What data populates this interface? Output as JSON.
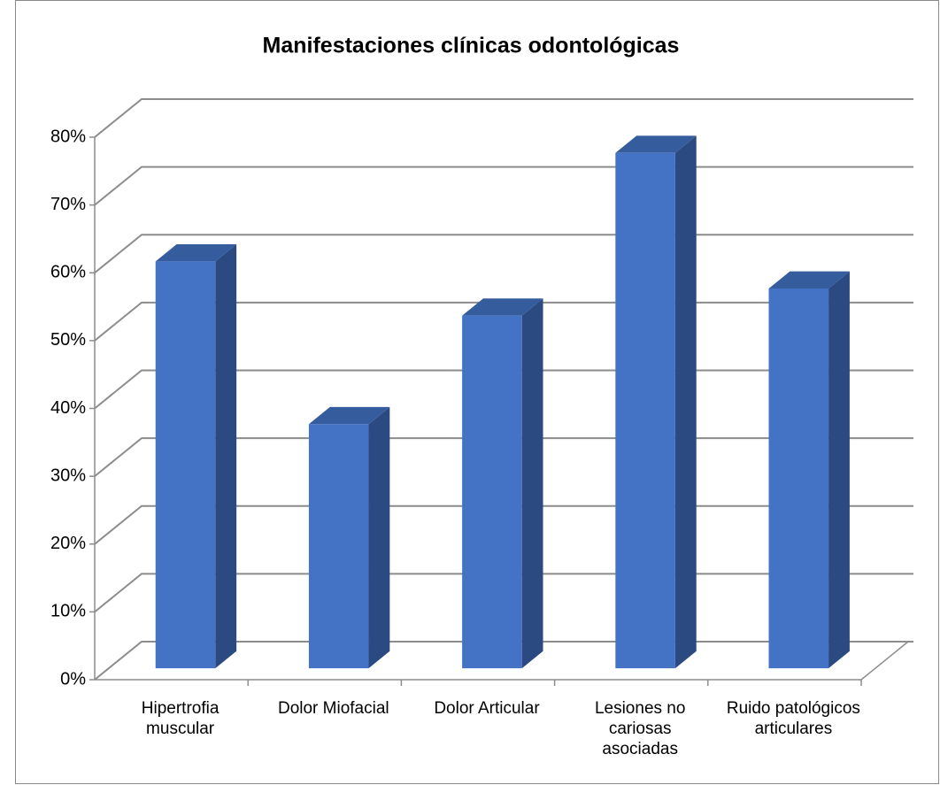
{
  "chart_data": {
    "type": "bar3d",
    "title": "Manifestaciones clínicas odontológicas",
    "categories": [
      "Hipertrofia muscular",
      "Dolor Miofacial",
      "Dolor Articular",
      "Lesiones no cariosas asociadas",
      "Ruido patológicos articulares"
    ],
    "values": [
      60,
      36,
      52,
      76,
      56
    ],
    "color": "#4472c4",
    "ylim": [
      0,
      80
    ],
    "yticks": [
      {
        "value": 0,
        "label": "0%"
      },
      {
        "value": 10,
        "label": "10%"
      },
      {
        "value": 20,
        "label": "20%"
      },
      {
        "value": 30,
        "label": "30%"
      },
      {
        "value": 40,
        "label": "40%"
      },
      {
        "value": 50,
        "label": "50%"
      },
      {
        "value": 60,
        "label": "60%"
      },
      {
        "value": 70,
        "label": "70%"
      },
      {
        "value": 80,
        "label": "80%"
      }
    ],
    "grid": true
  }
}
